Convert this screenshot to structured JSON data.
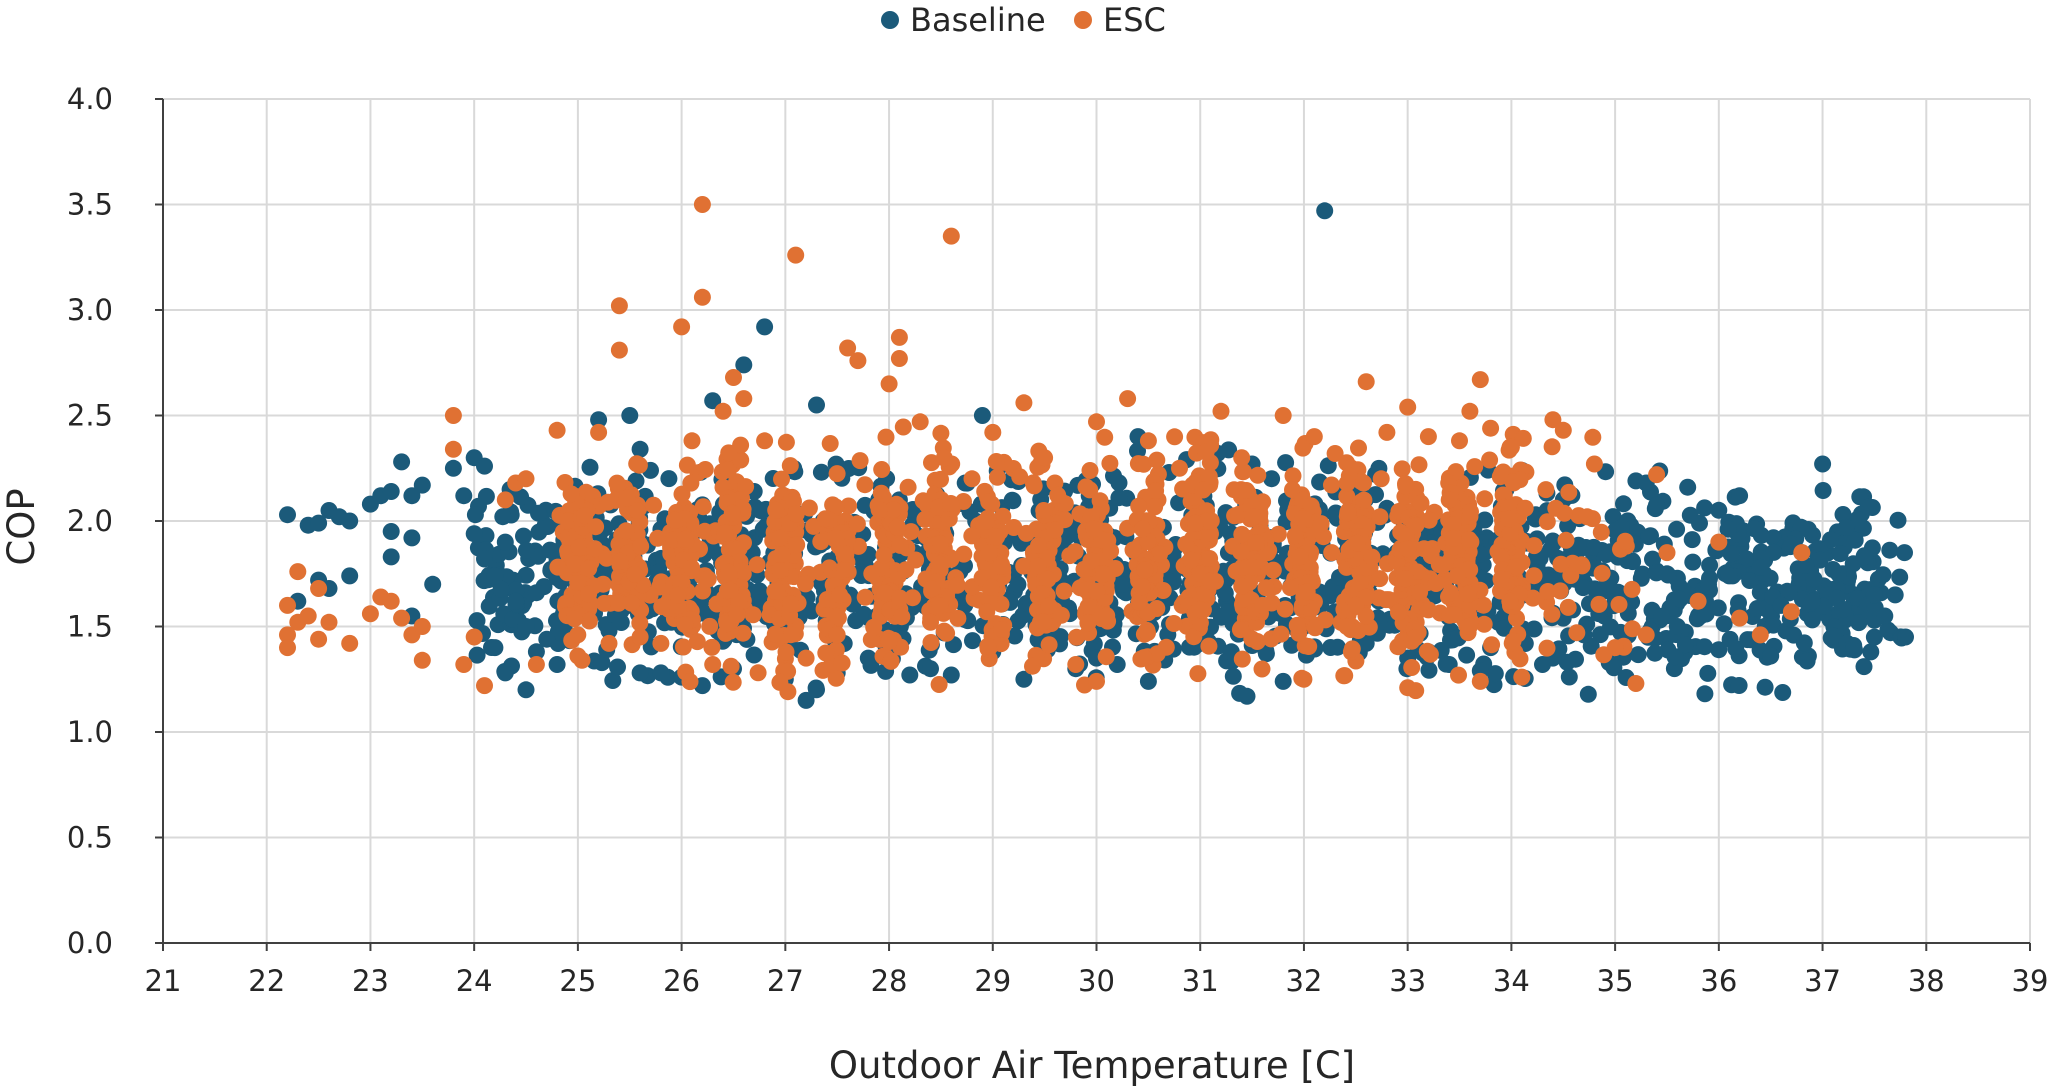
{
  "chart_data": {
    "type": "scatter",
    "title": "",
    "xlabel": "Outdoor Air Temperature [C]",
    "ylabel": "COP",
    "xlim": [
      21,
      39
    ],
    "ylim": [
      0.0,
      4.0
    ],
    "x_ticks": [
      21,
      22,
      23,
      24,
      25,
      26,
      27,
      28,
      29,
      30,
      31,
      32,
      33,
      34,
      35,
      36,
      37,
      38,
      39
    ],
    "y_ticks": [
      "0.0",
      "0.5",
      "1.0",
      "1.5",
      "2.0",
      "2.5",
      "3.0",
      "3.5",
      "4.0"
    ],
    "grid": true,
    "legend_position": "top-center",
    "colors": {
      "Baseline": "#1b5a7a",
      "ESC": "#e07133"
    },
    "series": [
      {
        "name": "Baseline",
        "color": "#1b5a7a",
        "points": [
          [
            22.2,
            2.03
          ],
          [
            22.4,
            1.98
          ],
          [
            22.5,
            1.99
          ],
          [
            22.6,
            2.05
          ],
          [
            22.7,
            2.02
          ],
          [
            22.8,
            2.0
          ],
          [
            22.5,
            1.72
          ],
          [
            22.6,
            1.68
          ],
          [
            22.8,
            1.74
          ],
          [
            22.3,
            1.62
          ],
          [
            23.0,
            2.08
          ],
          [
            23.1,
            2.12
          ],
          [
            23.2,
            2.14
          ],
          [
            23.3,
            2.28
          ],
          [
            23.4,
            2.12
          ],
          [
            23.5,
            2.17
          ],
          [
            23.2,
            1.95
          ],
          [
            23.4,
            1.92
          ],
          [
            23.2,
            1.83
          ],
          [
            23.6,
            1.7
          ],
          [
            23.4,
            1.55
          ],
          [
            23.8,
            2.25
          ],
          [
            23.9,
            2.12
          ],
          [
            24.0,
            2.3
          ],
          [
            24.1,
            2.26
          ],
          [
            24.0,
            1.94
          ],
          [
            24.1,
            1.82
          ],
          [
            24.2,
            1.74
          ],
          [
            24.3,
            1.9
          ],
          [
            24.4,
            1.62
          ],
          [
            24.5,
            1.5
          ],
          [
            24.6,
            1.38
          ],
          [
            24.5,
            1.2
          ],
          [
            24.3,
            1.28
          ],
          [
            24.7,
            1.44
          ],
          [
            24.8,
            1.32
          ],
          [
            24.2,
            1.4
          ],
          [
            24.6,
            1.66
          ],
          [
            25.0,
            2.1
          ],
          [
            25.1,
            1.98
          ],
          [
            25.2,
            1.72
          ],
          [
            25.3,
            1.48
          ],
          [
            25.2,
            2.48
          ],
          [
            25.5,
            2.5
          ],
          [
            25.6,
            2.34
          ],
          [
            25.7,
            2.24
          ],
          [
            25.8,
            1.96
          ],
          [
            25.9,
            1.52
          ],
          [
            25.6,
            1.28
          ],
          [
            25.8,
            1.28
          ],
          [
            26.0,
            1.26
          ],
          [
            26.2,
            1.22
          ],
          [
            26.3,
            2.57
          ],
          [
            26.4,
            2.22
          ],
          [
            26.5,
            1.3
          ],
          [
            26.6,
            2.74
          ],
          [
            26.8,
            2.92
          ],
          [
            26.7,
            2.14
          ],
          [
            27.0,
            1.25
          ],
          [
            27.2,
            1.15
          ],
          [
            27.3,
            1.2
          ],
          [
            27.3,
            2.55
          ],
          [
            27.5,
            1.28
          ],
          [
            27.8,
            1.35
          ],
          [
            28.0,
            1.38
          ],
          [
            28.1,
            2.1
          ],
          [
            28.2,
            1.27
          ],
          [
            28.4,
            1.3
          ],
          [
            28.6,
            1.27
          ],
          [
            28.9,
            2.5
          ],
          [
            29.0,
            1.38
          ],
          [
            29.3,
            1.25
          ],
          [
            29.5,
            1.46
          ],
          [
            29.8,
            1.3
          ],
          [
            30.0,
            1.35
          ],
          [
            30.2,
            1.32
          ],
          [
            30.4,
            2.4
          ],
          [
            30.5,
            1.24
          ],
          [
            30.7,
            2.23
          ],
          [
            31.0,
            1.42
          ],
          [
            31.3,
            1.38
          ],
          [
            31.5,
            2.27
          ],
          [
            31.8,
            1.24
          ],
          [
            32.0,
            1.5
          ],
          [
            32.2,
            3.47
          ],
          [
            32.3,
            1.57
          ],
          [
            32.6,
            1.42
          ],
          [
            32.8,
            2.06
          ],
          [
            33.0,
            1.35
          ],
          [
            33.2,
            1.38
          ],
          [
            33.4,
            1.32
          ],
          [
            33.5,
            1.85
          ],
          [
            33.7,
            1.29
          ],
          [
            33.8,
            1.4
          ],
          [
            34.0,
            1.72
          ],
          [
            34.1,
            2.24
          ],
          [
            34.3,
            1.32
          ],
          [
            34.5,
            2.1
          ],
          [
            34.7,
            1.46
          ],
          [
            35.0,
            1.62
          ],
          [
            35.2,
            2.19
          ],
          [
            35.3,
            2.18
          ],
          [
            35.5,
            1.75
          ],
          [
            35.6,
            1.5
          ],
          [
            35.7,
            2.16
          ],
          [
            35.8,
            1.62
          ],
          [
            35.9,
            1.7
          ],
          [
            36.0,
            1.39
          ],
          [
            36.1,
            1.74
          ],
          [
            36.2,
            2.12
          ],
          [
            36.4,
            1.78
          ],
          [
            36.5,
            1.36
          ],
          [
            36.6,
            1.6
          ],
          [
            36.7,
            1.89
          ],
          [
            36.8,
            1.85
          ],
          [
            36.9,
            1.62
          ],
          [
            37.0,
            2.27
          ],
          [
            37.1,
            1.77
          ],
          [
            37.2,
            1.58
          ],
          [
            37.3,
            1.41
          ],
          [
            37.4,
            1.83
          ],
          [
            37.5,
            1.65
          ],
          [
            37.6,
            1.55
          ],
          [
            37.7,
            1.65
          ],
          [
            37.4,
            1.31
          ],
          [
            37.8,
            1.45
          ]
        ]
      },
      {
        "name": "ESC",
        "color": "#e07133",
        "points": [
          [
            22.2,
            1.6
          ],
          [
            22.2,
            1.46
          ],
          [
            22.2,
            1.4
          ],
          [
            22.3,
            1.76
          ],
          [
            22.3,
            1.52
          ],
          [
            22.4,
            1.55
          ],
          [
            22.5,
            1.44
          ],
          [
            22.5,
            1.68
          ],
          [
            22.6,
            1.52
          ],
          [
            22.8,
            1.42
          ],
          [
            23.0,
            1.56
          ],
          [
            23.1,
            1.64
          ],
          [
            23.2,
            1.62
          ],
          [
            23.3,
            1.54
          ],
          [
            23.4,
            1.46
          ],
          [
            23.5,
            1.5
          ],
          [
            23.5,
            1.34
          ],
          [
            23.8,
            2.5
          ],
          [
            23.8,
            2.34
          ],
          [
            23.9,
            1.32
          ],
          [
            24.0,
            1.45
          ],
          [
            24.1,
            1.22
          ],
          [
            24.3,
            2.1
          ],
          [
            24.4,
            2.18
          ],
          [
            24.5,
            2.2
          ],
          [
            24.6,
            1.32
          ],
          [
            24.8,
            2.43
          ],
          [
            25.0,
            1.36
          ],
          [
            25.2,
            2.42
          ],
          [
            25.3,
            1.42
          ],
          [
            25.4,
            3.02
          ],
          [
            25.4,
            2.81
          ],
          [
            25.6,
            1.45
          ],
          [
            25.8,
            1.42
          ],
          [
            26.0,
            2.92
          ],
          [
            26.1,
            2.38
          ],
          [
            26.2,
            3.5
          ],
          [
            26.2,
            3.06
          ],
          [
            26.3,
            1.32
          ],
          [
            26.4,
            2.52
          ],
          [
            26.5,
            2.68
          ],
          [
            26.6,
            2.58
          ],
          [
            26.8,
            2.38
          ],
          [
            27.1,
            3.26
          ],
          [
            27.2,
            1.35
          ],
          [
            27.5,
            1.46
          ],
          [
            27.6,
            2.82
          ],
          [
            27.7,
            2.76
          ],
          [
            28.0,
            2.65
          ],
          [
            28.1,
            2.87
          ],
          [
            28.1,
            2.77
          ],
          [
            28.3,
            2.47
          ],
          [
            28.4,
            1.52
          ],
          [
            28.6,
            3.35
          ],
          [
            28.8,
            2.2
          ],
          [
            29.0,
            2.42
          ],
          [
            29.3,
            2.56
          ],
          [
            29.5,
            2.3
          ],
          [
            29.8,
            1.32
          ],
          [
            30.0,
            1.24
          ],
          [
            30.0,
            2.47
          ],
          [
            30.3,
            2.58
          ],
          [
            30.5,
            2.38
          ],
          [
            30.8,
            2.25
          ],
          [
            31.0,
            1.58
          ],
          [
            31.2,
            2.52
          ],
          [
            31.4,
            2.3
          ],
          [
            31.6,
            1.6
          ],
          [
            31.8,
            2.5
          ],
          [
            32.0,
            1.25
          ],
          [
            32.1,
            2.4
          ],
          [
            32.3,
            2.32
          ],
          [
            32.5,
            1.6
          ],
          [
            32.6,
            2.66
          ],
          [
            32.8,
            2.42
          ],
          [
            33.0,
            1.21
          ],
          [
            33.0,
            2.54
          ],
          [
            33.2,
            2.4
          ],
          [
            33.4,
            2.1
          ],
          [
            33.5,
            2.38
          ],
          [
            33.6,
            2.52
          ],
          [
            33.7,
            2.67
          ],
          [
            33.8,
            2.44
          ],
          [
            33.7,
            1.24
          ],
          [
            34.0,
            2.35
          ],
          [
            34.1,
            1.26
          ],
          [
            34.4,
            2.48
          ],
          [
            34.5,
            2.43
          ],
          [
            34.8,
            2.27
          ],
          [
            35.0,
            1.4
          ],
          [
            35.2,
            1.23
          ],
          [
            35.3,
            1.46
          ],
          [
            35.4,
            2.22
          ],
          [
            35.5,
            1.85
          ],
          [
            35.8,
            1.62
          ],
          [
            36.0,
            1.9
          ],
          [
            36.2,
            1.54
          ],
          [
            36.4,
            1.46
          ],
          [
            36.7,
            1.57
          ],
          [
            36.8,
            1.85
          ]
        ]
      }
    ]
  }
}
